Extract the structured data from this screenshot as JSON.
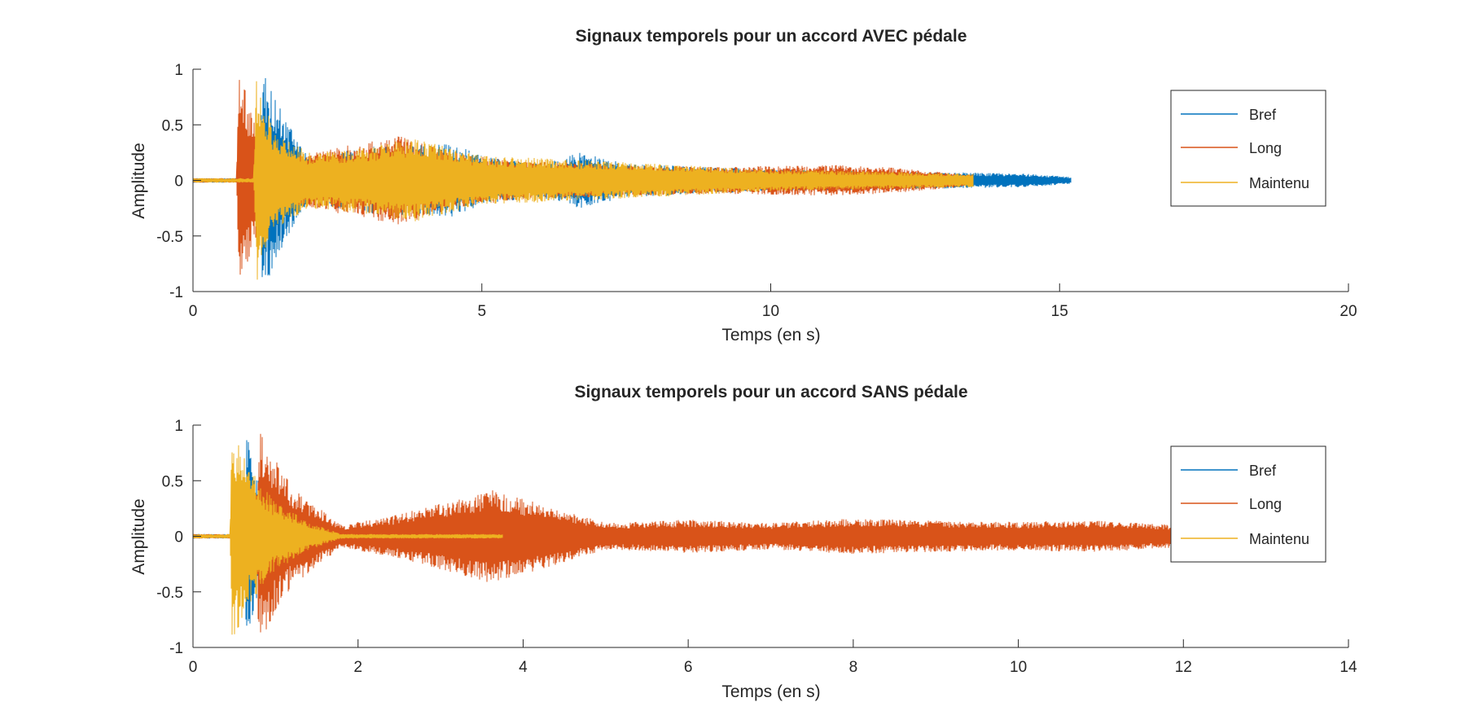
{
  "chart_data": [
    {
      "type": "line",
      "title": "Signaux temporels pour un accord AVEC pédale",
      "xlabel": "Temps (en s)",
      "ylabel": "Amplitude",
      "xlim": [
        0,
        20
      ],
      "ylim": [
        -1,
        1
      ],
      "xticks": [
        "0",
        "5",
        "10",
        "15",
        "20"
      ],
      "yticks": [
        "-1",
        "-0.5",
        "0",
        "0.5",
        "1"
      ],
      "grid": false,
      "legend_position": "top-right",
      "series": [
        {
          "name": "Bref",
          "color": "#0072BD",
          "onset": 1.2,
          "end": 15.2,
          "envelope": [
            [
              0,
              0.02
            ],
            [
              1.15,
              0.02
            ],
            [
              1.2,
              1.0
            ],
            [
              1.6,
              0.55
            ],
            [
              2.0,
              0.2
            ],
            [
              3.0,
              0.3
            ],
            [
              4.5,
              0.33
            ],
            [
              5.0,
              0.22
            ],
            [
              6.0,
              0.15
            ],
            [
              6.7,
              0.25
            ],
            [
              7.5,
              0.15
            ],
            [
              9.0,
              0.12
            ],
            [
              10.0,
              0.1
            ],
            [
              11.0,
              0.09
            ],
            [
              12.0,
              0.08
            ],
            [
              13.5,
              0.07
            ],
            [
              14.5,
              0.06
            ],
            [
              15.2,
              0.03
            ]
          ]
        },
        {
          "name": "Long",
          "color": "#D95319",
          "onset": 0.8,
          "end": 13.5,
          "envelope": [
            [
              0,
              0.02
            ],
            [
              0.75,
              0.02
            ],
            [
              0.8,
              0.97
            ],
            [
              1.1,
              0.5
            ],
            [
              1.6,
              0.2
            ],
            [
              2.5,
              0.3
            ],
            [
              3.6,
              0.4
            ],
            [
              4.5,
              0.25
            ],
            [
              5.5,
              0.18
            ],
            [
              7.0,
              0.15
            ],
            [
              9.0,
              0.12
            ],
            [
              10.0,
              0.13
            ],
            [
              11.0,
              0.14
            ],
            [
              12.0,
              0.12
            ],
            [
              13.5,
              0.05
            ]
          ]
        },
        {
          "name": "Maintenu",
          "color": "#EDB120",
          "onset": 1.1,
          "end": 13.5,
          "envelope": [
            [
              0,
              0.02
            ],
            [
              1.05,
              0.02
            ],
            [
              1.1,
              0.92
            ],
            [
              1.4,
              0.45
            ],
            [
              2.0,
              0.25
            ],
            [
              3.0,
              0.3
            ],
            [
              3.8,
              0.38
            ],
            [
              5.0,
              0.22
            ],
            [
              6.0,
              0.2
            ],
            [
              8.0,
              0.15
            ],
            [
              10.0,
              0.1
            ],
            [
              12.0,
              0.08
            ],
            [
              13.5,
              0.06
            ]
          ]
        }
      ]
    },
    {
      "type": "line",
      "title": "Signaux temporels pour un accord SANS pédale",
      "xlabel": "Temps (en s)",
      "ylabel": "Amplitude",
      "xlim": [
        0,
        14
      ],
      "ylim": [
        -1,
        1
      ],
      "xticks": [
        "0",
        "2",
        "4",
        "6",
        "8",
        "10",
        "12",
        "14"
      ],
      "yticks": [
        "-1",
        "-0.5",
        "0",
        "0.5",
        "1"
      ],
      "grid": false,
      "legend_position": "top-right",
      "series": [
        {
          "name": "Bref",
          "color": "#0072BD",
          "onset": 0.65,
          "end": 1.0,
          "envelope": [
            [
              0,
              0.02
            ],
            [
              0.6,
              0.02
            ],
            [
              0.65,
              1.0
            ],
            [
              0.8,
              0.5
            ],
            [
              1.0,
              0.15
            ]
          ]
        },
        {
          "name": "Long",
          "color": "#D95319",
          "onset": 0.8,
          "end": 12.0,
          "envelope": [
            [
              0,
              0.02
            ],
            [
              0.75,
              0.02
            ],
            [
              0.8,
              0.95
            ],
            [
              1.2,
              0.45
            ],
            [
              1.8,
              0.1
            ],
            [
              2.5,
              0.2
            ],
            [
              3.0,
              0.3
            ],
            [
              3.6,
              0.42
            ],
            [
              4.2,
              0.3
            ],
            [
              5.0,
              0.12
            ],
            [
              6.0,
              0.15
            ],
            [
              7.0,
              0.12
            ],
            [
              8.0,
              0.16
            ],
            [
              9.0,
              0.14
            ],
            [
              10.0,
              0.13
            ],
            [
              11.0,
              0.14
            ],
            [
              12.0,
              0.1
            ]
          ]
        },
        {
          "name": "Maintenu",
          "color": "#EDB120",
          "onset": 0.47,
          "end": 3.75,
          "envelope": [
            [
              0,
              0.02
            ],
            [
              0.45,
              0.02
            ],
            [
              0.47,
              0.97
            ],
            [
              0.7,
              0.6
            ],
            [
              1.0,
              0.3
            ],
            [
              1.5,
              0.1
            ],
            [
              1.8,
              0.02
            ],
            [
              3.6,
              0.02
            ],
            [
              3.75,
              0.02
            ]
          ]
        }
      ]
    }
  ]
}
